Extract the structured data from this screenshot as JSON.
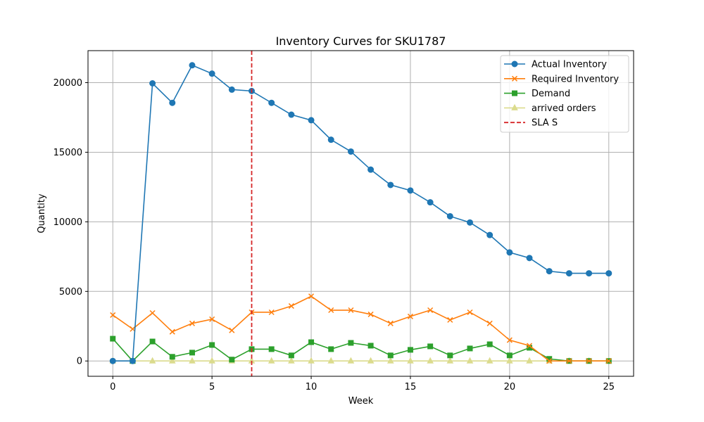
{
  "chart_data": {
    "type": "line",
    "title": "Inventory Curves for SKU1787",
    "xlabel": "Week",
    "ylabel": "Quantity",
    "xlim": [
      -1.25,
      26.25
    ],
    "ylim": [
      -1100,
      22300
    ],
    "xticks": [
      0,
      5,
      10,
      15,
      20,
      25
    ],
    "yticks": [
      0,
      5000,
      10000,
      15000,
      20000
    ],
    "grid": true,
    "legend_position": "top-right",
    "x": [
      0,
      1,
      2,
      3,
      4,
      5,
      6,
      7,
      8,
      9,
      10,
      11,
      12,
      13,
      14,
      15,
      16,
      17,
      18,
      19,
      20,
      21,
      22,
      23,
      24,
      25
    ],
    "series": [
      {
        "name": "Actual Inventory",
        "color": "#1f77b4",
        "marker": "circle",
        "values": [
          0,
          0,
          19950,
          18550,
          21250,
          20650,
          19500,
          19400,
          18550,
          17700,
          17300,
          15900,
          15050,
          13750,
          12650,
          12250,
          11400,
          10400,
          9950,
          9050,
          7800,
          7400,
          6450,
          6300,
          6300,
          6300
        ]
      },
      {
        "name": "Required Inventory",
        "color": "#ff7f0e",
        "marker": "x",
        "values": [
          3300,
          2300,
          3450,
          2100,
          2700,
          3000,
          2200,
          3500,
          3500,
          3950,
          4650,
          3650,
          3650,
          3350,
          2700,
          3200,
          3650,
          2950,
          3500,
          2700,
          1500,
          1100,
          0,
          0,
          0,
          0
        ]
      },
      {
        "name": "Demand",
        "color": "#2ca02c",
        "marker": "square",
        "values": [
          1600,
          0,
          1400,
          300,
          600,
          1150,
          100,
          850,
          850,
          400,
          1350,
          850,
          1300,
          1100,
          400,
          800,
          1050,
          400,
          900,
          1200,
          400,
          950,
          150,
          0,
          0,
          0
        ]
      },
      {
        "name": "arrived orders",
        "color": "#dbdb8d",
        "marker": "triangle",
        "values": [
          0,
          0,
          0,
          0,
          0,
          0,
          0,
          0,
          0,
          0,
          0,
          0,
          0,
          0,
          0,
          0,
          0,
          0,
          0,
          0,
          0,
          0,
          0,
          0,
          0,
          0
        ]
      }
    ],
    "vlines": [
      {
        "name": "SLA S",
        "x": 7,
        "color": "#d62728",
        "style": "dashed"
      }
    ]
  }
}
